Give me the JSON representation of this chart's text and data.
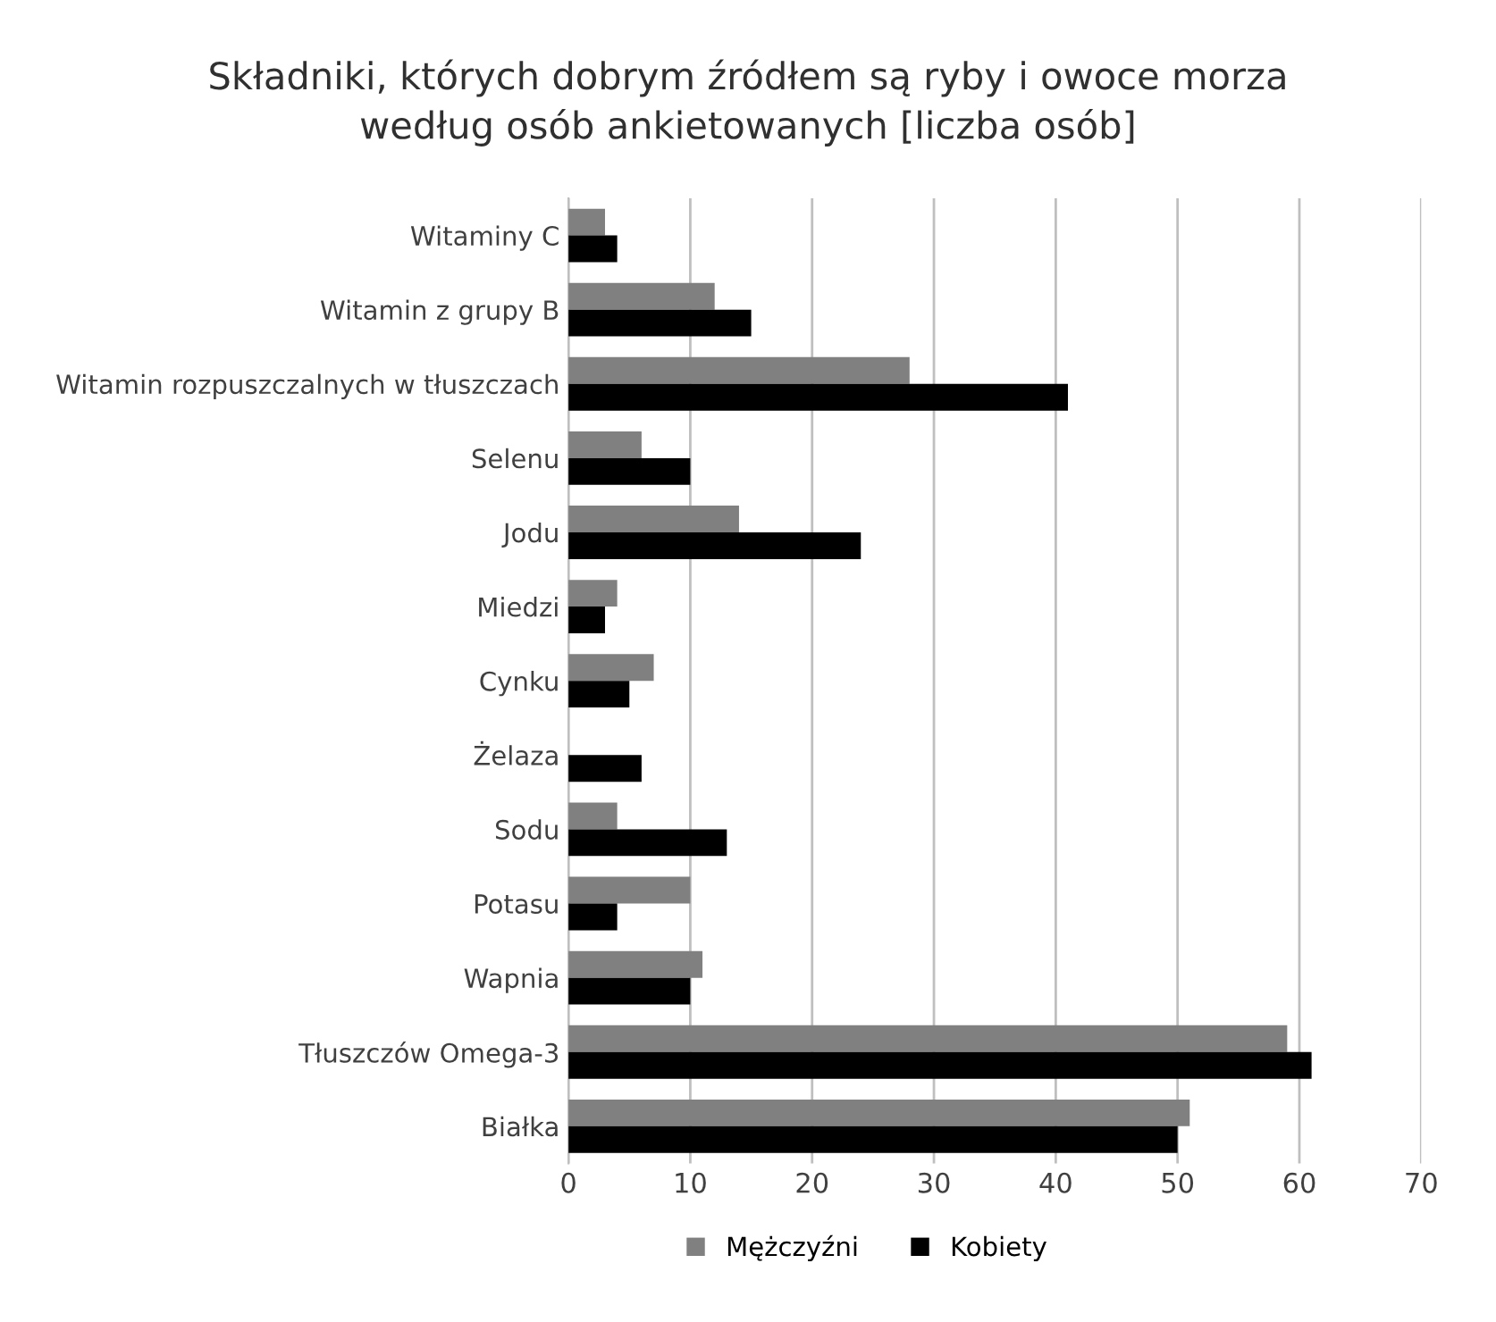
{
  "chart_data": {
    "type": "bar",
    "orientation": "horizontal",
    "title": "Składniki, których dobrym źródłem są ryby i owoce morza\nwedług osób ankietowanych [liczba osób]",
    "categories": [
      "Witaminy C",
      "Witamin z grupy B",
      "Witamin rozpuszczalnych w tłuszczach",
      "Selenu",
      "Jodu",
      "Miedzi",
      "Cynku",
      "Żelaza",
      "Sodu",
      "Potasu",
      "Wapnia",
      "Tłuszczów Omega-3",
      "Białka"
    ],
    "series": [
      {
        "name": "Mężczyźni",
        "color": "#808080",
        "values": [
          3,
          12,
          28,
          6,
          14,
          4,
          7,
          0,
          4,
          10,
          11,
          59,
          51
        ]
      },
      {
        "name": "Kobiety",
        "color": "#000000",
        "values": [
          4,
          15,
          41,
          10,
          24,
          3,
          5,
          6,
          13,
          4,
          10,
          61,
          50
        ]
      }
    ],
    "xlim": [
      0,
      70
    ],
    "xticks": [
      0,
      10,
      20,
      30,
      40,
      50,
      60,
      70
    ],
    "grid": "x",
    "legend": "bottom"
  }
}
